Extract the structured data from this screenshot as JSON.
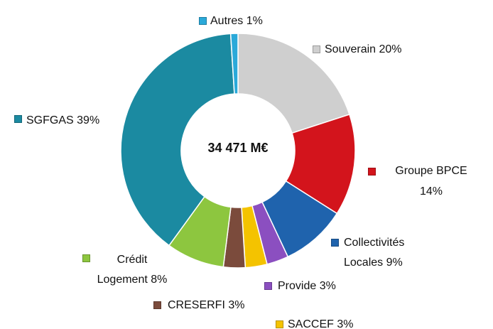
{
  "chart_data": {
    "type": "pie",
    "center_label": "34 471 M€",
    "categories": [
      "Souverain",
      "Groupe BPCE",
      "Collectivités Locales",
      "Provide",
      "SACCEF",
      "CRESERFI",
      "Crédit Logement",
      "SGFGAS",
      "Autres"
    ],
    "values": [
      20,
      14,
      9,
      3,
      3,
      3,
      8,
      39,
      1
    ],
    "value_labels": [
      "20%",
      "14%",
      "9%",
      "3%",
      "3%",
      "3%",
      "8%",
      "39%",
      "1%"
    ],
    "colors": [
      "#cfcfcf",
      "#d3141c",
      "#1f63ad",
      "#8b4fc0",
      "#f4c300",
      "#7b4b3c",
      "#8dc63f",
      "#1b8aa1",
      "#2aa9d9"
    ]
  }
}
